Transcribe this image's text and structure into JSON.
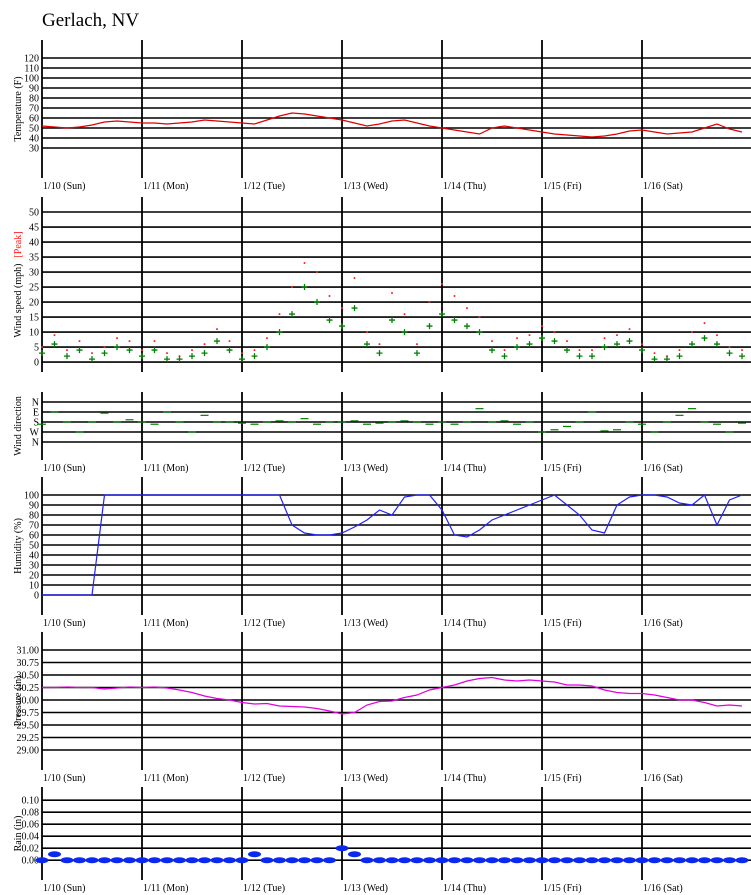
{
  "title": "Gerlach, NV",
  "chart_data": [
    {
      "type": "line",
      "ylabel": "Temperature (F)",
      "color": "#e00000",
      "x": [
        0,
        3,
        6,
        9,
        12,
        15,
        18,
        21,
        24,
        27,
        30,
        33,
        36,
        39,
        42,
        45,
        48,
        51,
        54,
        57,
        60,
        63,
        66,
        69,
        72,
        75,
        78,
        81,
        84,
        87,
        90,
        93,
        96,
        99,
        102,
        105,
        108,
        111,
        114,
        117,
        120,
        123,
        126,
        129,
        132,
        135,
        138,
        141,
        144,
        147,
        150,
        153,
        156,
        159,
        162,
        165,
        168
      ],
      "values": [
        52,
        51,
        50,
        51,
        53,
        56,
        57,
        56,
        55,
        55,
        54,
        55,
        56,
        58,
        57,
        56,
        55,
        54,
        58,
        62,
        65,
        64,
        62,
        60,
        58,
        55,
        52,
        54,
        57,
        58,
        55,
        52,
        50,
        48,
        46,
        44,
        50,
        52,
        50,
        48,
        46,
        44,
        43,
        42,
        41,
        42,
        44,
        47,
        48,
        46,
        44,
        45,
        46,
        50,
        54,
        49,
        46
      ],
      "xlim": [
        0,
        168
      ],
      "xticks": [
        {
          "value": 0,
          "label": "1/10 (Sun)"
        },
        {
          "value": 24,
          "label": "1/11 (Mon)"
        },
        {
          "value": 48,
          "label": "1/12 (Tue)"
        },
        {
          "value": 72,
          "label": "1/13 (Wed)"
        },
        {
          "value": 96,
          "label": "1/14 (Thu)"
        },
        {
          "value": 120,
          "label": "1/15 (Fri)"
        },
        {
          "value": 144,
          "label": "1/16 (Sat)"
        }
      ],
      "ylim": [
        0,
        138
      ],
      "yticks": [
        30,
        40,
        50,
        60,
        70,
        80,
        90,
        100,
        110,
        120
      ]
    },
    {
      "type": "scatter",
      "ylabel": "Wind speed (mph)",
      "x": [
        0,
        3,
        6,
        9,
        12,
        15,
        18,
        21,
        24,
        27,
        30,
        33,
        36,
        39,
        42,
        45,
        48,
        51,
        54,
        57,
        60,
        63,
        66,
        69,
        72,
        75,
        78,
        81,
        84,
        87,
        90,
        93,
        96,
        99,
        102,
        105,
        108,
        111,
        114,
        117,
        120,
        123,
        126,
        129,
        132,
        135,
        138,
        141,
        144,
        147,
        150,
        153,
        156,
        159,
        162,
        165,
        168
      ],
      "series": [
        {
          "name": "[Peak]",
          "color": "#ff2020",
          "marker": "dot",
          "values": [
            5,
            9,
            4,
            7,
            3,
            5,
            8,
            7,
            4,
            7,
            3,
            2,
            4,
            6,
            11,
            7,
            3,
            4,
            8,
            16,
            25,
            33,
            30,
            22,
            18,
            28,
            10,
            6,
            23,
            16,
            6,
            20,
            26,
            22,
            18,
            15,
            7,
            4,
            8,
            9,
            12,
            10,
            7,
            4,
            4,
            8,
            9,
            11,
            6,
            3,
            2,
            4,
            10,
            13,
            9,
            5,
            4
          ]
        },
        {
          "color": "#008000",
          "marker": "plus",
          "values": [
            3,
            6,
            2,
            4,
            1,
            3,
            5,
            4,
            2,
            4,
            1,
            1,
            2,
            3,
            7,
            4,
            1,
            2,
            5,
            10,
            16,
            25,
            20,
            14,
            12,
            18,
            6,
            3,
            14,
            10,
            3,
            12,
            16,
            14,
            12,
            10,
            4,
            2,
            5,
            6,
            8,
            7,
            4,
            2,
            2,
            5,
            6,
            7,
            4,
            1,
            1,
            2,
            6,
            8,
            6,
            3,
            2
          ]
        }
      ],
      "xlim": [
        0,
        168
      ],
      "xticks": [
        0,
        24,
        48,
        72,
        96,
        120,
        144
      ],
      "ylim": [
        -3.3,
        55
      ],
      "yticks": [
        0,
        5,
        10,
        15,
        20,
        25,
        30,
        35,
        40,
        45,
        50
      ]
    },
    {
      "type": "scatter",
      "ylabel": "Wind direction",
      "color": "#008000",
      "marker": "dash",
      "x": [
        0,
        3,
        6,
        9,
        12,
        15,
        18,
        21,
        24,
        27,
        30,
        33,
        36,
        39,
        42,
        45,
        48,
        51,
        54,
        57,
        60,
        63,
        66,
        69,
        72,
        75,
        78,
        81,
        84,
        87,
        90,
        93,
        96,
        99,
        102,
        105,
        108,
        111,
        114,
        117,
        120,
        123,
        126,
        129,
        132,
        135,
        138,
        141,
        144,
        147,
        150,
        153,
        156,
        159,
        162,
        165,
        168
      ],
      "values": [
        200,
        90,
        180,
        270,
        180,
        100,
        180,
        160,
        180,
        200,
        90,
        180,
        270,
        120,
        180,
        180,
        190,
        200,
        180,
        170,
        180,
        150,
        200,
        180,
        180,
        170,
        200,
        190,
        180,
        170,
        180,
        200,
        180,
        200,
        180,
        60,
        180,
        170,
        200,
        180,
        270,
        250,
        220,
        180,
        90,
        260,
        250,
        180,
        200,
        270,
        180,
        120,
        60,
        180,
        200,
        270,
        190
      ],
      "xlim": [
        0,
        168
      ],
      "xticks": [
        {
          "value": 0,
          "label": "1/10 (Sun)"
        },
        {
          "value": 24,
          "label": "1/11 (Mon)"
        },
        {
          "value": 48,
          "label": "1/12 (Tue)"
        },
        {
          "value": 72,
          "label": "1/13 (Wed)"
        },
        {
          "value": 96,
          "label": "1/14 (Thu)"
        },
        {
          "value": 120,
          "label": "1/15 (Fri)"
        },
        {
          "value": 144,
          "label": "1/16 (Sat)"
        }
      ],
      "ylim": [
        522,
        -90
      ],
      "yticks": [
        {
          "value": 0,
          "label": "N"
        },
        {
          "value": 90,
          "label": "E"
        },
        {
          "value": 180,
          "label": "S"
        },
        {
          "value": 270,
          "label": "W"
        },
        {
          "value": 360,
          "label": "N"
        }
      ]
    },
    {
      "type": "line",
      "ylabel": "Humidity (%)",
      "color": "#2020ff",
      "x": [
        0,
        3,
        6,
        9,
        12,
        15,
        18,
        21,
        24,
        27,
        30,
        33,
        36,
        39,
        42,
        45,
        48,
        51,
        54,
        57,
        60,
        63,
        66,
        69,
        72,
        75,
        78,
        81,
        84,
        87,
        90,
        93,
        96,
        99,
        102,
        105,
        108,
        111,
        114,
        117,
        120,
        123,
        126,
        129,
        132,
        135,
        138,
        141,
        144,
        147,
        150,
        153,
        156,
        159,
        162,
        165,
        168
      ],
      "values": [
        0,
        0,
        0,
        0,
        0,
        100,
        100,
        100,
        100,
        100,
        100,
        100,
        100,
        100,
        100,
        100,
        100,
        100,
        100,
        100,
        70,
        62,
        60,
        60,
        62,
        68,
        75,
        85,
        80,
        98,
        100,
        100,
        85,
        60,
        58,
        65,
        75,
        80,
        85,
        90,
        95,
        100,
        90,
        80,
        65,
        62,
        90,
        98,
        100,
        100,
        98,
        92,
        90,
        100,
        70,
        95,
        100
      ],
      "xlim": [
        0,
        168
      ],
      "xticks": [
        {
          "value": 0,
          "label": "1/10 (Sun)"
        },
        {
          "value": 24,
          "label": "1/11 (Mon)"
        },
        {
          "value": 48,
          "label": "1/12 (Tue)"
        },
        {
          "value": 72,
          "label": "1/13 (Wed)"
        },
        {
          "value": 96,
          "label": "1/14 (Thu)"
        },
        {
          "value": 120,
          "label": "1/15 (Fri)"
        },
        {
          "value": 144,
          "label": "1/16 (Sat)"
        }
      ],
      "ylim": [
        -20,
        118
      ],
      "yticks": [
        0,
        10,
        20,
        30,
        40,
        50,
        60,
        70,
        80,
        90,
        100
      ]
    },
    {
      "type": "line",
      "ylabel": "Pressure (in)",
      "color": "#e000e0",
      "x": [
        0,
        3,
        6,
        9,
        12,
        15,
        18,
        21,
        24,
        27,
        30,
        33,
        36,
        39,
        42,
        45,
        48,
        51,
        54,
        57,
        60,
        63,
        66,
        69,
        72,
        75,
        78,
        81,
        84,
        87,
        90,
        93,
        96,
        99,
        102,
        105,
        108,
        111,
        114,
        117,
        120,
        123,
        126,
        129,
        132,
        135,
        138,
        141,
        144,
        147,
        150,
        153,
        156,
        159,
        162,
        165,
        168
      ],
      "values": [
        30.25,
        30.25,
        30.26,
        30.25,
        30.25,
        30.22,
        30.24,
        30.26,
        30.25,
        30.26,
        30.24,
        30.2,
        30.15,
        30.08,
        30.03,
        30.0,
        29.95,
        29.92,
        29.93,
        29.88,
        29.87,
        29.86,
        29.83,
        29.78,
        29.72,
        29.75,
        29.9,
        29.97,
        29.98,
        30.05,
        30.1,
        30.2,
        30.25,
        30.3,
        30.38,
        30.43,
        30.45,
        30.4,
        30.38,
        30.4,
        30.38,
        30.36,
        30.3,
        30.3,
        30.28,
        30.2,
        30.15,
        30.13,
        30.13,
        30.1,
        30.05,
        30.0,
        30.0,
        29.95,
        29.88,
        29.9,
        29.88
      ],
      "xlim": [
        0,
        168
      ],
      "xticks": [
        {
          "value": 0,
          "label": "1/10 (Sun)"
        },
        {
          "value": 24,
          "label": "1/11 (Mon)"
        },
        {
          "value": 48,
          "label": "1/12 (Tue)"
        },
        {
          "value": 72,
          "label": "1/13 (Wed)"
        },
        {
          "value": 96,
          "label": "1/14 (Thu)"
        },
        {
          "value": 120,
          "label": "1/15 (Fri)"
        },
        {
          "value": 144,
          "label": "1/16 (Sat)"
        }
      ],
      "ylim": [
        28.6,
        31.36
      ],
      "yticks": [
        {
          "value": 29,
          "label": "29.00"
        },
        {
          "value": 29.25,
          "label": "29.25"
        },
        {
          "value": 29.5,
          "label": "29.50"
        },
        {
          "value": 29.75,
          "label": "29.75"
        },
        {
          "value": 30,
          "label": "30.00"
        },
        {
          "value": 30.25,
          "label": "30.25"
        },
        {
          "value": 30.5,
          "label": "30.50"
        },
        {
          "value": 30.75,
          "label": "30.75"
        },
        {
          "value": 31,
          "label": "31.00"
        }
      ]
    },
    {
      "type": "scatter",
      "ylabel": "Rain (in)",
      "color": "#0a28f0",
      "marker": "ellipse",
      "x": [
        0,
        3,
        6,
        9,
        12,
        15,
        18,
        21,
        24,
        27,
        30,
        33,
        36,
        39,
        42,
        45,
        48,
        51,
        54,
        57,
        60,
        63,
        66,
        69,
        72,
        75,
        78,
        81,
        84,
        87,
        90,
        93,
        96,
        99,
        102,
        105,
        108,
        111,
        114,
        117,
        120,
        123,
        126,
        129,
        132,
        135,
        138,
        141,
        144,
        147,
        150,
        153,
        156,
        159,
        162,
        165,
        168
      ],
      "values": [
        0,
        0.01,
        0,
        0,
        0,
        0,
        0,
        0,
        0,
        0,
        0,
        0,
        0,
        0,
        0,
        0,
        0,
        0.01,
        0,
        0,
        0,
        0,
        0,
        0,
        0.02,
        0.01,
        0,
        0,
        0,
        0,
        0,
        0,
        0,
        0,
        0,
        0,
        0,
        0,
        0,
        0,
        0,
        0,
        0,
        0,
        0,
        0,
        0,
        0,
        0,
        0,
        0,
        0,
        0,
        0,
        0,
        0,
        0
      ],
      "xlim": [
        0,
        168
      ],
      "xticks": [
        {
          "value": 0,
          "label": "1/10 (Sun)"
        },
        {
          "value": 24,
          "label": "1/11 (Mon)"
        },
        {
          "value": 48,
          "label": "1/12 (Tue)"
        },
        {
          "value": 72,
          "label": "1/13 (Wed)"
        },
        {
          "value": 96,
          "label": "1/14 (Thu)"
        },
        {
          "value": 120,
          "label": "1/15 (Fri)"
        },
        {
          "value": 144,
          "label": "1/16 (Sat)"
        }
      ],
      "ylim": [
        -0.033,
        0.122
      ],
      "yticks": [
        {
          "value": 0,
          "label": "0.00"
        },
        {
          "value": 0.02,
          "label": "0.02"
        },
        {
          "value": 0.04,
          "label": "0.04"
        },
        {
          "value": 0.06,
          "label": "0.06"
        },
        {
          "value": 0.08,
          "label": "0.08"
        },
        {
          "value": 0.1,
          "label": "0.10"
        }
      ]
    }
  ]
}
